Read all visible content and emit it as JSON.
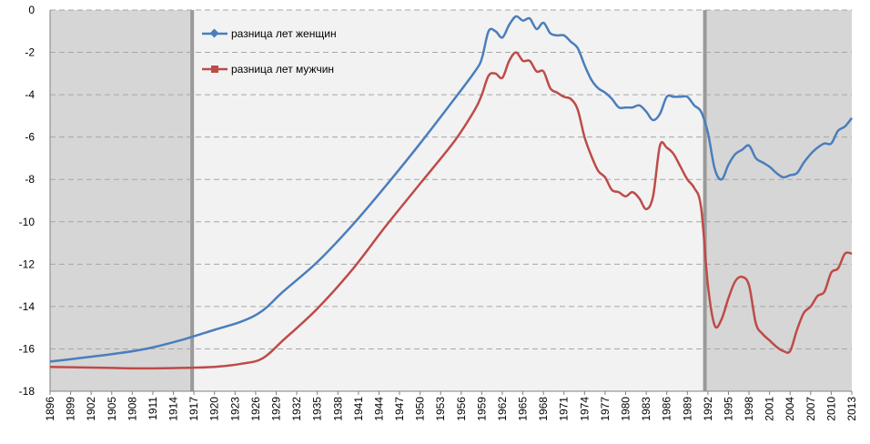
{
  "chart_data": {
    "type": "line",
    "title": "",
    "xlabel": "",
    "ylabel": "",
    "xlim": [
      1896,
      2013
    ],
    "ylim": [
      -18,
      0
    ],
    "y_ticks": [
      "0",
      "-2",
      "-4",
      "-6",
      "-8",
      "-10",
      "-12",
      "-14",
      "-16",
      "-18"
    ],
    "x_ticks": [
      "1896",
      "1899",
      "1902",
      "1905",
      "1908",
      "1911",
      "1914",
      "1917",
      "1920",
      "1923",
      "1926",
      "1929",
      "1932",
      "1935",
      "1938",
      "1941",
      "1944",
      "1947",
      "1950",
      "1953",
      "1956",
      "1959",
      "1962",
      "1965",
      "1968",
      "1971",
      "1974",
      "1977",
      "1980",
      "1983",
      "1986",
      "1989",
      "1992",
      "1995",
      "1998",
      "2001",
      "2004",
      "2007",
      "2010",
      "2013"
    ],
    "shaded_periods": [
      [
        1896,
        1917
      ],
      [
        1991.3,
        2013
      ]
    ],
    "grid": "horizontal dashed",
    "legend_position": "top-left",
    "series": [
      {
        "name": "разница лет женщин",
        "color": "#4a7ebb",
        "marker": "diamond",
        "points": [
          [
            1896,
            -16.6
          ],
          [
            1900,
            -16.45
          ],
          [
            1905,
            -16.25
          ],
          [
            1910,
            -16.0
          ],
          [
            1915,
            -15.6
          ],
          [
            1920,
            -15.1
          ],
          [
            1924,
            -14.7
          ],
          [
            1927,
            -14.2
          ],
          [
            1930,
            -13.3
          ],
          [
            1935,
            -11.9
          ],
          [
            1940,
            -10.2
          ],
          [
            1945,
            -8.3
          ],
          [
            1950,
            -6.3
          ],
          [
            1955,
            -4.2
          ],
          [
            1958,
            -2.9
          ],
          [
            1959,
            -2.3
          ],
          [
            1960,
            -1.0
          ],
          [
            1961,
            -1.0
          ],
          [
            1962,
            -1.3
          ],
          [
            1963,
            -0.7
          ],
          [
            1964,
            -0.3
          ],
          [
            1965,
            -0.5
          ],
          [
            1966,
            -0.4
          ],
          [
            1967,
            -0.9
          ],
          [
            1968,
            -0.6
          ],
          [
            1969,
            -1.1
          ],
          [
            1970,
            -1.2
          ],
          [
            1971,
            -1.2
          ],
          [
            1972,
            -1.5
          ],
          [
            1973,
            -1.8
          ],
          [
            1974,
            -2.6
          ],
          [
            1975,
            -3.3
          ],
          [
            1976,
            -3.7
          ],
          [
            1977,
            -3.9
          ],
          [
            1978,
            -4.2
          ],
          [
            1979,
            -4.6
          ],
          [
            1980,
            -4.6
          ],
          [
            1981,
            -4.6
          ],
          [
            1982,
            -4.5
          ],
          [
            1983,
            -4.8
          ],
          [
            1984,
            -5.2
          ],
          [
            1985,
            -4.9
          ],
          [
            1986,
            -4.1
          ],
          [
            1987,
            -4.1
          ],
          [
            1988,
            -4.1
          ],
          [
            1989,
            -4.1
          ],
          [
            1990,
            -4.5
          ],
          [
            1991,
            -4.8
          ],
          [
            1992,
            -5.8
          ],
          [
            1993,
            -7.5
          ],
          [
            1994,
            -8.0
          ],
          [
            1995,
            -7.3
          ],
          [
            1996,
            -6.8
          ],
          [
            1997,
            -6.6
          ],
          [
            1998,
            -6.4
          ],
          [
            1999,
            -7.0
          ],
          [
            2000,
            -7.2
          ],
          [
            2001,
            -7.4
          ],
          [
            2002,
            -7.7
          ],
          [
            2003,
            -7.9
          ],
          [
            2004,
            -7.8
          ],
          [
            2005,
            -7.7
          ],
          [
            2006,
            -7.2
          ],
          [
            2007,
            -6.8
          ],
          [
            2008,
            -6.5
          ],
          [
            2009,
            -6.3
          ],
          [
            2010,
            -6.3
          ],
          [
            2011,
            -5.7
          ],
          [
            2012,
            -5.5
          ],
          [
            2013,
            -5.1
          ]
        ]
      },
      {
        "name": "разница лет мужчин",
        "color": "#be4b48",
        "marker": "square",
        "points": [
          [
            1896,
            -16.85
          ],
          [
            1905,
            -16.9
          ],
          [
            1910,
            -16.92
          ],
          [
            1915,
            -16.9
          ],
          [
            1920,
            -16.85
          ],
          [
            1924,
            -16.7
          ],
          [
            1927,
            -16.45
          ],
          [
            1930,
            -15.6
          ],
          [
            1935,
            -14.1
          ],
          [
            1940,
            -12.3
          ],
          [
            1945,
            -10.2
          ],
          [
            1950,
            -8.2
          ],
          [
            1955,
            -6.2
          ],
          [
            1958,
            -4.7
          ],
          [
            1959,
            -4.0
          ],
          [
            1960,
            -3.1
          ],
          [
            1961,
            -3.0
          ],
          [
            1962,
            -3.2
          ],
          [
            1963,
            -2.4
          ],
          [
            1964,
            -2.0
          ],
          [
            1965,
            -2.4
          ],
          [
            1966,
            -2.4
          ],
          [
            1967,
            -2.9
          ],
          [
            1968,
            -2.9
          ],
          [
            1969,
            -3.7
          ],
          [
            1970,
            -3.9
          ],
          [
            1971,
            -4.1
          ],
          [
            1972,
            -4.2
          ],
          [
            1973,
            -4.7
          ],
          [
            1974,
            -6.0
          ],
          [
            1975,
            -6.9
          ],
          [
            1976,
            -7.6
          ],
          [
            1977,
            -7.9
          ],
          [
            1978,
            -8.5
          ],
          [
            1979,
            -8.6
          ],
          [
            1980,
            -8.8
          ],
          [
            1981,
            -8.6
          ],
          [
            1982,
            -8.9
          ],
          [
            1983,
            -9.4
          ],
          [
            1984,
            -8.8
          ],
          [
            1985,
            -6.4
          ],
          [
            1986,
            -6.5
          ],
          [
            1987,
            -6.8
          ],
          [
            1988,
            -7.4
          ],
          [
            1989,
            -8.0
          ],
          [
            1990,
            -8.4
          ],
          [
            1991,
            -9.3
          ],
          [
            1992,
            -13.0
          ],
          [
            1993,
            -14.9
          ],
          [
            1994,
            -14.6
          ],
          [
            1995,
            -13.6
          ],
          [
            1996,
            -12.8
          ],
          [
            1997,
            -12.6
          ],
          [
            1998,
            -13.0
          ],
          [
            1999,
            -14.8
          ],
          [
            2000,
            -15.3
          ],
          [
            2001,
            -15.6
          ],
          [
            2002,
            -15.9
          ],
          [
            2003,
            -16.1
          ],
          [
            2004,
            -16.1
          ],
          [
            2005,
            -15.1
          ],
          [
            2006,
            -14.3
          ],
          [
            2007,
            -14.0
          ],
          [
            2008,
            -13.5
          ],
          [
            2009,
            -13.3
          ],
          [
            2010,
            -12.4
          ],
          [
            2011,
            -12.2
          ],
          [
            2012,
            -11.5
          ],
          [
            2013,
            -11.5
          ]
        ]
      }
    ]
  }
}
